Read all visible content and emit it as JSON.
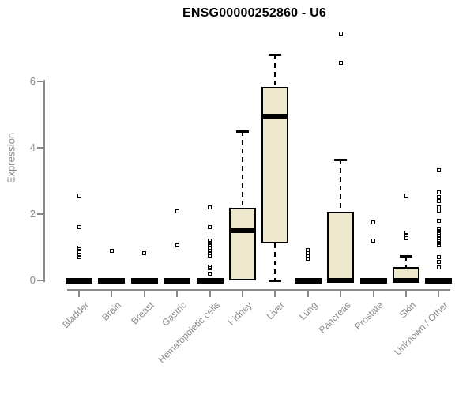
{
  "chart_data": {
    "type": "boxplot",
    "title": "ENSG00000252860 - U6",
    "ylabel": "Expression",
    "xlabel": "",
    "ylim": [
      0,
      7.6
    ],
    "yticks": [
      0,
      2,
      4,
      6
    ],
    "grid": false,
    "legend": null,
    "categories": [
      "Bladder",
      "Brain",
      "Breast",
      "Gastric",
      "Hematopoietic cells",
      "Kidney",
      "Liver",
      "Lung",
      "Pancreas",
      "Prostate",
      "Skin",
      "Unknown / Other"
    ],
    "boxes": [
      {
        "category": "Bladder",
        "q1": 0,
        "median": 0,
        "q3": 0,
        "whisker_low": 0,
        "whisker_high": 0,
        "outliers": [
          2.57,
          1.6,
          1.0,
          0.93,
          0.85,
          0.78,
          0.7
        ]
      },
      {
        "category": "Brain",
        "q1": 0,
        "median": 0,
        "q3": 0,
        "whisker_low": 0,
        "whisker_high": 0,
        "outliers": [
          0.9
        ]
      },
      {
        "category": "Breast",
        "q1": 0,
        "median": 0,
        "q3": 0,
        "whisker_low": 0,
        "whisker_high": 0,
        "outliers": [
          0.82
        ]
      },
      {
        "category": "Gastric",
        "q1": 0,
        "median": 0,
        "q3": 0,
        "whisker_low": 0,
        "whisker_high": 0,
        "outliers": [
          2.08,
          1.05
        ]
      },
      {
        "category": "Hematopoietic cells",
        "q1": 0,
        "median": 0,
        "q3": 0,
        "whisker_low": 0,
        "whisker_high": 0,
        "outliers": [
          2.2,
          1.6,
          1.2,
          1.12,
          1.05,
          0.98,
          0.9,
          0.82,
          0.76,
          0.42,
          0.36,
          0.2
        ]
      },
      {
        "category": "Kidney",
        "q1": 0,
        "median": 1.5,
        "q3": 2.2,
        "whisker_low": 0,
        "whisker_high": 4.5,
        "outliers": []
      },
      {
        "category": "Liver",
        "q1": 1.13,
        "median": 4.95,
        "q3": 5.83,
        "whisker_low": 0,
        "whisker_high": 6.8,
        "outliers": []
      },
      {
        "category": "Lung",
        "q1": 0,
        "median": 0,
        "q3": 0,
        "whisker_low": 0,
        "whisker_high": 0,
        "outliers": [
          0.92,
          0.83,
          0.74,
          0.65
        ]
      },
      {
        "category": "Pancreas",
        "q1": 0,
        "median": 0,
        "q3": 2.07,
        "whisker_low": 0,
        "whisker_high": 3.65,
        "outliers": [
          7.43,
          6.55
        ]
      },
      {
        "category": "Prostate",
        "q1": 0,
        "median": 0,
        "q3": 0,
        "whisker_low": 0,
        "whisker_high": 0,
        "outliers": [
          1.74,
          1.2
        ]
      },
      {
        "category": "Skin",
        "q1": 0,
        "median": 0,
        "q3": 0.4,
        "whisker_low": 0,
        "whisker_high": 0.73,
        "outliers": [
          2.55,
          1.45,
          1.36,
          1.27
        ]
      },
      {
        "category": "Unknown / Other",
        "q1": 0,
        "median": 0,
        "q3": 0,
        "whisker_low": 0,
        "whisker_high": 0,
        "outliers": [
          3.33,
          2.65,
          2.52,
          2.4,
          2.2,
          2.1,
          1.79,
          1.55,
          1.48,
          1.41,
          1.34,
          1.27,
          1.2,
          1.13,
          1.07,
          0.7,
          0.55,
          0.4
        ]
      }
    ],
    "colors": {
      "box_fill": "#EEE8CD",
      "box_border": "#000000",
      "median": "#000000",
      "axis": "#8A8A8A",
      "tick_label": "#8A8A8A",
      "title": "#000000",
      "background": "#FFFFFF"
    }
  }
}
